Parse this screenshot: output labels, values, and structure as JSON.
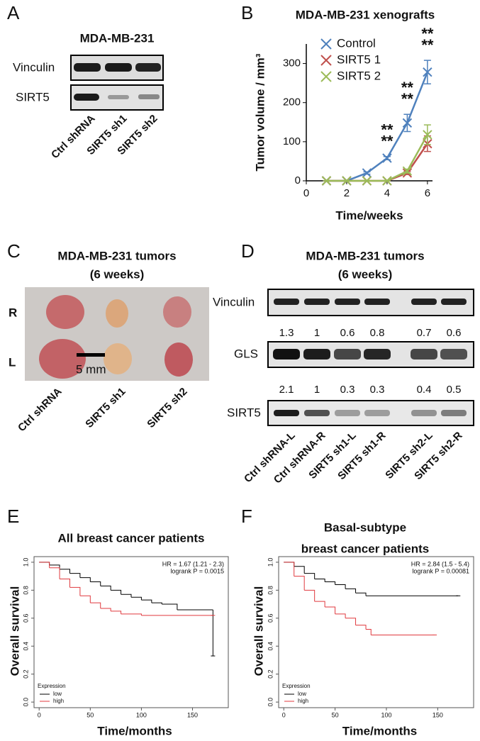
{
  "panel_labels": [
    "A",
    "B",
    "C",
    "D",
    "E",
    "F"
  ],
  "panel_a": {
    "title": "MDA-MB-231",
    "rows": [
      "Vinculin",
      "SIRT5"
    ],
    "lanes": [
      "Ctrl shRNA",
      "SIRT5 sh1",
      "SIRT5 sh2"
    ]
  },
  "panel_c": {
    "title": [
      "MDA-MB-231 tumors",
      "(6 weeks)"
    ],
    "rows": [
      "R",
      "L"
    ],
    "scale_bar": "5 mm",
    "lanes": [
      "Ctrl shRNA",
      "SIRT5 sh1",
      "SIRT5 sh2"
    ]
  },
  "panel_d": {
    "title": [
      "MDA-MB-231 tumors",
      "(6 weeks)"
    ],
    "rows": [
      "Vinculin",
      "GLS",
      "SIRT5"
    ],
    "gls_quantification": [
      1.3,
      1,
      0.6,
      0.8,
      0.7,
      0.6
    ],
    "sirt5_quantification": [
      2.1,
      1,
      0.3,
      0.3,
      0.4,
      0.5
    ],
    "lanes": [
      "Ctrl shRNA-L",
      "Ctrl shRNA-R",
      "SIRT5 sh1-L",
      "SIRT5 sh1-R",
      "SIRT5 sh2-L",
      "SIRT5 sh2-R"
    ]
  },
  "chart_data": [
    {
      "type": "line",
      "title": "MDA-MB-231 xenografts",
      "x_label": "Time/weeks",
      "y_label": "Tumor volume / mm³",
      "x": [
        1,
        2,
        3,
        4,
        5,
        6
      ],
      "xlim": [
        0,
        6.25
      ],
      "xticks": [
        0,
        2,
        4,
        6
      ],
      "ylim": [
        0,
        350
      ],
      "yticks": [
        0,
        100,
        200,
        300
      ],
      "legend": "upper left",
      "series": [
        {
          "name": "Control",
          "color": "#4f81bd",
          "values": [
            0,
            0,
            20,
            58,
            148,
            278
          ],
          "errors": [
            0,
            0,
            3,
            4,
            22,
            30
          ]
        },
        {
          "name": "SIRT5 1",
          "color": "#c0504d",
          "values": [
            0,
            0,
            0,
            0,
            20,
            95
          ],
          "errors": [
            0,
            0,
            0,
            0,
            4,
            20
          ]
        },
        {
          "name": "SIRT5 2",
          "color": "#9bbb59",
          "values": [
            0,
            0,
            0,
            0,
            25,
            118
          ],
          "errors": [
            0,
            0,
            0,
            0,
            5,
            25
          ]
        }
      ],
      "annotations": [
        {
          "x": 4,
          "text": "**",
          "color": "#c0504d"
        },
        {
          "x": 4,
          "text": "**",
          "color": "#9bbb59"
        },
        {
          "x": 5,
          "text": "**",
          "color": "#c0504d"
        },
        {
          "x": 5,
          "text": "**",
          "color": "#9bbb59"
        },
        {
          "x": 6,
          "text": "**",
          "color": "#c0504d"
        },
        {
          "x": 6,
          "text": "**",
          "color": "#9bbb59"
        }
      ]
    },
    {
      "type": "step",
      "title": [
        "All breast cancer patients"
      ],
      "x_label": "Time/months",
      "y_label": "Overall survival",
      "xlim": [
        -5,
        185
      ],
      "xticks": [
        0,
        50,
        100,
        150
      ],
      "ylim": [
        -0.04,
        1.04
      ],
      "yticks": [
        {
          "value": 0,
          "label": "0.0"
        },
        0.2,
        0.4,
        0.6,
        0.8,
        {
          "value": 1,
          "label": "1.0"
        }
      ],
      "annotations": [
        "HR = 1.67 (1.21 - 2.3)",
        "logrank P = 0.0015"
      ],
      "legend_title": "Expression",
      "series": [
        {
          "name": "low",
          "color": "#000000",
          "x": [
            0,
            10,
            20,
            30,
            40,
            50,
            60,
            70,
            80,
            90,
            100,
            110,
            120,
            135,
            170,
            170
          ],
          "values": [
            1,
            0.98,
            0.95,
            0.92,
            0.89,
            0.86,
            0.83,
            0.8,
            0.77,
            0.75,
            0.73,
            0.71,
            0.7,
            0.66,
            0.66,
            0.33
          ]
        },
        {
          "name": "high",
          "color": "#e0393e",
          "x": [
            0,
            10,
            20,
            30,
            40,
            50,
            60,
            70,
            80,
            100,
            170
          ],
          "values": [
            1,
            0.96,
            0.88,
            0.82,
            0.76,
            0.71,
            0.67,
            0.65,
            0.63,
            0.62,
            0.62
          ]
        }
      ]
    },
    {
      "type": "step",
      "title": [
        "Basal-subtype",
        "breast cancer patients"
      ],
      "x_label": "Time/months",
      "y_label": "Overall survival",
      "xlim": [
        -5,
        185
      ],
      "xticks": [
        0,
        50,
        100,
        150
      ],
      "ylim": [
        -0.04,
        1.04
      ],
      "yticks": [
        {
          "value": 0,
          "label": "0.0"
        },
        0.2,
        0.4,
        0.6,
        0.8,
        {
          "value": 1,
          "label": "1.0"
        }
      ],
      "annotations": [
        "HR = 2.84 (1.5 - 5.4)",
        "logrank P = 0.00081"
      ],
      "legend_title": "Expression",
      "series": [
        {
          "name": "low",
          "color": "#000000",
          "x": [
            0,
            10,
            20,
            30,
            40,
            50,
            60,
            70,
            80,
            170
          ],
          "values": [
            1,
            0.97,
            0.92,
            0.88,
            0.86,
            0.84,
            0.81,
            0.78,
            0.76,
            0.76
          ]
        },
        {
          "name": "high",
          "color": "#e0393e",
          "x": [
            0,
            10,
            20,
            30,
            40,
            50,
            60,
            70,
            80,
            85,
            147
          ],
          "values": [
            1,
            0.9,
            0.8,
            0.72,
            0.68,
            0.63,
            0.6,
            0.55,
            0.52,
            0.48,
            0.48
          ]
        }
      ]
    }
  ]
}
